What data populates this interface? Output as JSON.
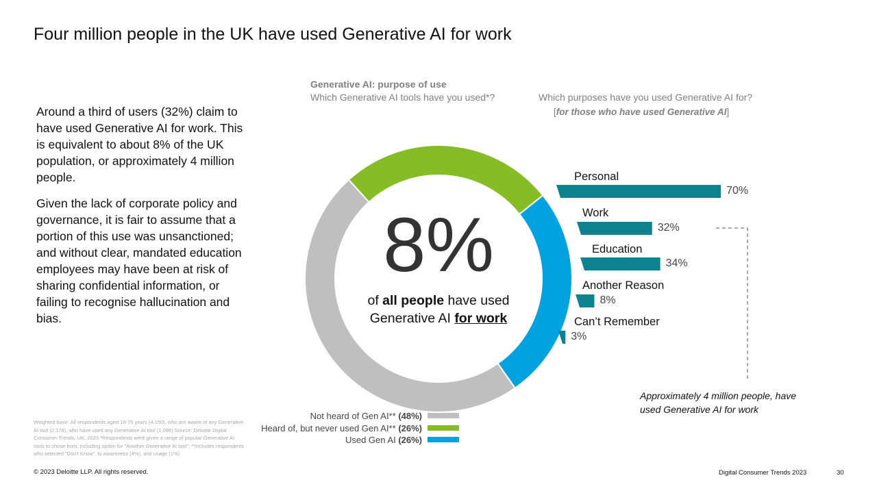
{
  "slide": {
    "title": "Four million people in the UK have used Generative AI for work",
    "paragraphs": [
      "Around a third of users (32%) claim to have used Generative AI for work. This is equivalent to about 8% of the UK population, or approximately 4 million people.",
      "Given the lack of corporate policy and governance, it is fair to assume that a portion of this use was unsanctioned; and without clear, mandated education employees may have been at risk of sharing confidential information, or failing to recognise hallucination and bias."
    ],
    "footnote": "Weighted base: All respondents aged 16-75 years (4,150), who are aware of any Generative AI tool (2,178), who have used any Generative AI tool (1,096) Source: Deloitte Digital Consumer Trends, UK, 2023 *Respondents were given a range of popular Generative AI tools to chose from, including option for \"Another Generative AI tool\"; **Includes respondents who selected \"Don't Know\", to awareness (4%), and usage (1%)",
    "copyright": "© 2023 Deloitte LLP. All rights reserved.",
    "report_name": "Digital Consumer Trends 2023",
    "page_number": "30"
  },
  "chart_header": {
    "heading": "Generative AI: purpose of use",
    "question_left": "Which Generative AI tools have you used*?",
    "question_right": "Which purposes have you used Generative AI for?",
    "subquestion_open": "[",
    "subquestion_italic": "for those who have used Generative AI",
    "subquestion_close": "]"
  },
  "center": {
    "value": "8%",
    "caption_pre": "of ",
    "caption_bold": "all people",
    "caption_mid": " have used",
    "caption_line2_pre": "Generative AI ",
    "caption_underline": "for work"
  },
  "annotation": "Approximately 4 million people, have used Generative AI for work",
  "colors": {
    "not_heard": "#bfbfbf",
    "heard_not_used": "#86bc25",
    "used": "#00a3e0",
    "bar": "#0d8390"
  },
  "chart_data": [
    {
      "type": "pie",
      "title": "Which Generative AI tools have you used*?",
      "categories": [
        "Not heard of Gen AI**",
        "Heard of, but never used Gen AI**",
        "Used Gen AI"
      ],
      "values": [
        48,
        26,
        26
      ],
      "value_labels": [
        "(48%)",
        "(26%)",
        "(26%)"
      ],
      "legend_position": "bottom"
    },
    {
      "type": "bar",
      "title": "Which purposes have you used Generative AI for?",
      "categories": [
        "Personal",
        "Work",
        "Education",
        "Another Reason",
        "Can’t Remember"
      ],
      "values": [
        70,
        32,
        34,
        8,
        3
      ],
      "value_labels": [
        "70%",
        "32%",
        "34%",
        "8%",
        "3%"
      ]
    }
  ]
}
